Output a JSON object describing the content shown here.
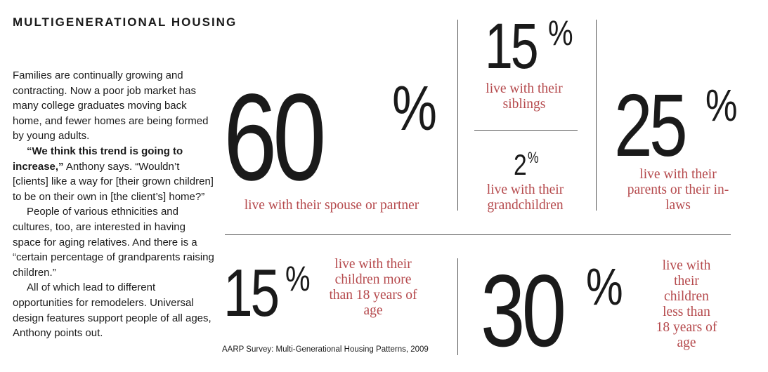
{
  "header": {
    "title": "MULTIGENERATIONAL HOUSING"
  },
  "article": {
    "p1": "Families are continually growing and contracting. Now a poor job market has many college graduates moving back home, and fewer homes are being formed by young adults.",
    "p2_quote": "“We think this trend is going to increase,”",
    "p2_rest": " Anthony says. “Wouldn’t [clients] like a way for [their grown children] to be on their own in [the client’s] home?”",
    "p3": "People of various ethnicities and cultures, too, are interested in having space for aging relatives. And there is a “certain percentage of grandparents raising children.”",
    "p4": "All of which lead to different opportunities for remodelers. Universal design features support people of all ages, Anthony points out."
  },
  "stats": {
    "spouse": {
      "value": "60",
      "unit": "%",
      "label": "live with their spouse or partner"
    },
    "siblings": {
      "value": "15",
      "unit": "%",
      "label": "live with their siblings"
    },
    "grandchildren": {
      "value": "2",
      "unit": "%",
      "label": "live with their grandchildren"
    },
    "parents": {
      "value": "25",
      "unit": "%",
      "label": "live with their parents or their in-laws"
    },
    "children_over18": {
      "value": "15",
      "unit": "%",
      "label": "live with their children more than 18 years of age"
    },
    "children_under18": {
      "value": "30",
      "unit": "%",
      "label": "live with their children less than 18 years of age"
    }
  },
  "source": "AARP Survey: Multi-Generational Housing Patterns, 2009",
  "colors": {
    "label": "#b5494c",
    "text": "#1a1a1a",
    "rule": "#555555"
  }
}
